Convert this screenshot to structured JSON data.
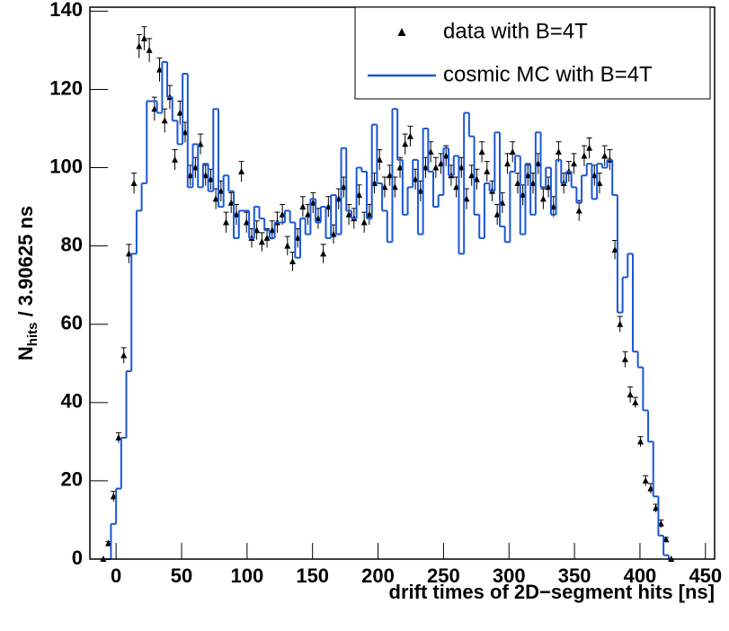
{
  "chart_data": {
    "type": "histogram-compare",
    "xlabel": "drift times of 2D−segment hits [ns]",
    "ylabel": {
      "main": "N",
      "sub": "hits",
      "rest": " / 3.90625 ns"
    },
    "xlim": [
      -20,
      457
    ],
    "ylim": [
      0,
      141
    ],
    "xticks": [
      0,
      50,
      100,
      150,
      200,
      250,
      300,
      350,
      400,
      450
    ],
    "yticks": [
      0,
      20,
      40,
      60,
      80,
      100,
      120,
      140
    ],
    "legend": "upper right",
    "x": [
      -9.77,
      -5.86,
      -1.95,
      1.95,
      5.86,
      9.77,
      13.67,
      17.58,
      21.48,
      25.39,
      29.3,
      33.2,
      37.11,
      41.02,
      44.92,
      48.83,
      52.73,
      56.64,
      60.55,
      64.45,
      68.36,
      72.27,
      76.17,
      80.08,
      83.98,
      87.89,
      91.8,
      95.7,
      99.61,
      103.52,
      107.42,
      111.33,
      115.23,
      119.14,
      123.05,
      126.95,
      130.86,
      134.77,
      138.67,
      142.58,
      146.48,
      150.39,
      154.3,
      158.2,
      162.11,
      166.02,
      169.92,
      173.83,
      177.73,
      181.64,
      185.55,
      189.45,
      193.36,
      197.27,
      201.17,
      205.08,
      208.98,
      212.89,
      216.8,
      220.7,
      224.61,
      228.52,
      232.42,
      236.33,
      240.23,
      244.14,
      248.05,
      251.95,
      255.86,
      259.77,
      263.67,
      267.58,
      271.48,
      275.39,
      279.3,
      283.2,
      287.11,
      291.02,
      294.92,
      298.83,
      302.73,
      306.64,
      310.55,
      314.45,
      318.36,
      322.27,
      326.17,
      330.08,
      333.98,
      337.89,
      341.8,
      345.7,
      349.61,
      353.52,
      357.42,
      361.33,
      365.23,
      369.14,
      373.05,
      376.95,
      380.86,
      384.77,
      388.67,
      392.58,
      396.48,
      400.39,
      404.3,
      408.2,
      412.11,
      416.02,
      419.92,
      423.83
    ],
    "series": [
      {
        "name": "data with B=4T",
        "style": "markers",
        "color": "#000000",
        "values": [
          0,
          4,
          16,
          31,
          52,
          78,
          96,
          131,
          133,
          130,
          115,
          125,
          112,
          118,
          102,
          114,
          109,
          98,
          100,
          106,
          98,
          97,
          92,
          94,
          86,
          91,
          88,
          99,
          86,
          82,
          84,
          81,
          82,
          84,
          86,
          88,
          80,
          76,
          82,
          90,
          88,
          91,
          87,
          78,
          90,
          83,
          92,
          95,
          88,
          87,
          93,
          86,
          88,
          96,
          102,
          95,
          98,
          95,
          100,
          106,
          108,
          97,
          94,
          100,
          104,
          100,
          101,
          103,
          98,
          95,
          100,
          92,
          98,
          97,
          104,
          99,
          94,
          88,
          91,
          101,
          104,
          96,
          93,
          98,
          96,
          101,
          92,
          95,
          90,
          104,
          96,
          99,
          101,
          89,
          103,
          105,
          98,
          96,
          103,
          102,
          79,
          60,
          51,
          42,
          40,
          30,
          20,
          18,
          13,
          9,
          5,
          0
        ],
        "errors": [
          0,
          0.5,
          1.3,
          1.3,
          2,
          2.4,
          2.6,
          3,
          3,
          3,
          3,
          3,
          3,
          3,
          2.6,
          3,
          2.6,
          2.6,
          2.6,
          2.6,
          2.6,
          2.6,
          2.6,
          2.6,
          2.6,
          2.6,
          2.6,
          2.6,
          2.6,
          2.4,
          2.4,
          2.4,
          2.4,
          2.4,
          2.6,
          2.6,
          2.4,
          2.4,
          2.4,
          2.6,
          2.6,
          2.6,
          2.6,
          2.4,
          2.6,
          2.4,
          2.6,
          2.6,
          2.6,
          2.6,
          2.6,
          2.6,
          2.6,
          2.6,
          2.6,
          2.6,
          2.6,
          2.6,
          2.6,
          2.6,
          2.6,
          2.6,
          2.6,
          2.6,
          2.6,
          2.6,
          2.6,
          2.6,
          2.6,
          2.6,
          2.6,
          2.6,
          2.6,
          2.6,
          2.6,
          2.6,
          2.6,
          2.6,
          2.6,
          2.6,
          2.6,
          2.6,
          2.6,
          2.6,
          2.6,
          2.6,
          2.6,
          2.6,
          2.6,
          2.6,
          2.6,
          2.6,
          2.6,
          2.6,
          2.6,
          2.6,
          2.6,
          2.6,
          2.6,
          2.6,
          2.4,
          2,
          2,
          2,
          1.3,
          1.3,
          1.3,
          1.3,
          1,
          1,
          0.5,
          0
        ]
      },
      {
        "name": "cosmic MC with B=4T",
        "style": "step",
        "color": "#1a57d8",
        "values": [
          0,
          0,
          9,
          18,
          31,
          48,
          78,
          89,
          96,
          117,
          117,
          114,
          127,
          118,
          112,
          106,
          124,
          95,
          106,
          95,
          101,
          94,
          115,
          90,
          98,
          94,
          82,
          89,
          89,
          82,
          90,
          87,
          84,
          82,
          86,
          86,
          89,
          86,
          77,
          87,
          83,
          92,
          86,
          90,
          82,
          93,
          83,
          105,
          89,
          87,
          100,
          99,
          87,
          111,
          96,
          89,
          81,
          115,
          102,
          88,
          95,
          102,
          83,
          110,
          99,
          90,
          93,
          105,
          98,
          103,
          78,
          114,
          108,
          88,
          82,
          96,
          94,
          109,
          85,
          81,
          99,
          103,
          83,
          101,
          88,
          109,
          95,
          100,
          88,
          102,
          96,
          99,
          95,
          91,
          98,
          101,
          92,
          101,
          100,
          102,
          93,
          63,
          72,
          78,
          53,
          49,
          38,
          30,
          16,
          6,
          1,
          0
        ]
      }
    ]
  }
}
